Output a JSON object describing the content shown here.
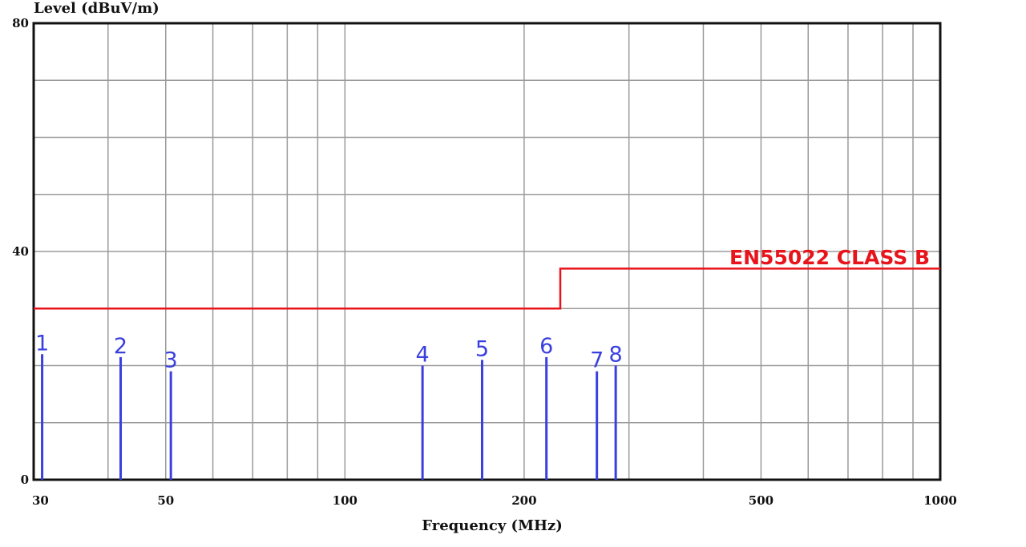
{
  "chart_data": {
    "type": "line",
    "ylabel": "Level (dBuV/m)",
    "xlabel": "Frequency (MHz)",
    "x_scale": "log",
    "xlim": [
      30,
      1000
    ],
    "ylim": [
      0,
      80
    ],
    "grid": true,
    "x_ticks": [
      {
        "value": 30,
        "label": "30"
      },
      {
        "value": 50,
        "label": "50"
      },
      {
        "value": 100,
        "label": "100"
      },
      {
        "value": 200,
        "label": "200"
      },
      {
        "value": 500,
        "label": "500"
      },
      {
        "value": 1000,
        "label": "1000"
      }
    ],
    "y_ticks": [
      {
        "value": 0,
        "label": "0"
      },
      {
        "value": 40,
        "label": "40"
      },
      {
        "value": 80,
        "label": "80"
      }
    ],
    "limit_line": {
      "name": "EN55022 CLASS B",
      "color": "#e8141c",
      "points": [
        [
          30,
          30
        ],
        [
          230,
          30
        ],
        [
          230,
          37
        ],
        [
          1000,
          37
        ]
      ]
    },
    "markers_color": "#3a3fe0",
    "markers": [
      {
        "label": "1",
        "freq": 31,
        "level": 22
      },
      {
        "label": "2",
        "freq": 42,
        "level": 21.5
      },
      {
        "label": "3",
        "freq": 51,
        "level": 19
      },
      {
        "label": "4",
        "freq": 135,
        "level": 20
      },
      {
        "label": "5",
        "freq": 170,
        "level": 21
      },
      {
        "label": "6",
        "freq": 218,
        "level": 21.5
      },
      {
        "label": "7",
        "freq": 265,
        "level": 19
      },
      {
        "label": "8",
        "freq": 285,
        "level": 20
      }
    ]
  }
}
